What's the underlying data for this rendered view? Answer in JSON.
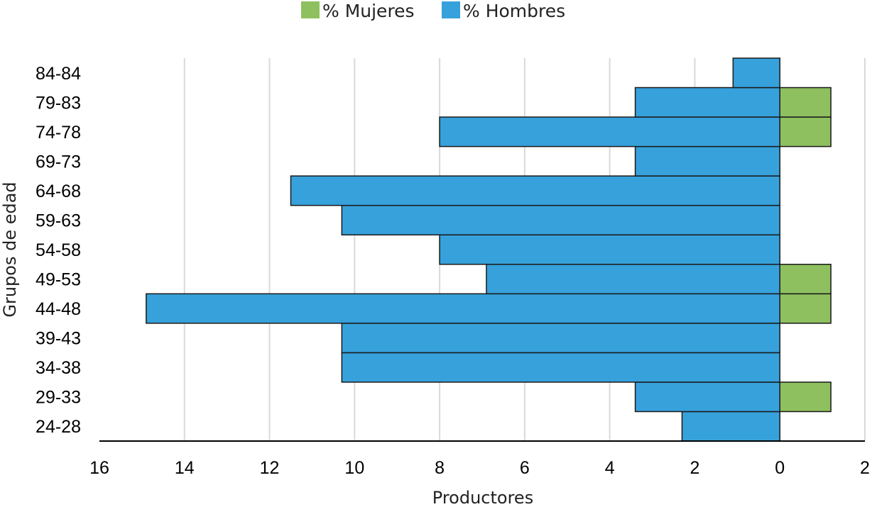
{
  "chart_data": {
    "type": "bar",
    "orientation": "horizontal",
    "layout": "population-pyramid",
    "xlabel": "Productores",
    "ylabel": "Grupos de edad",
    "xlim": [
      -16,
      2
    ],
    "x_ticks": [
      -16,
      -14,
      -12,
      -10,
      -8,
      -6,
      -4,
      -2,
      0,
      2
    ],
    "x_tick_labels": [
      "16",
      "14",
      "12",
      "10",
      "8",
      "6",
      "4",
      "2",
      "0",
      "2"
    ],
    "grid": true,
    "legend_position": "top-center",
    "categories": [
      "24-28",
      "29-33",
      "34-38",
      "39-43",
      "44-48",
      "49-53",
      "54-58",
      "59-63",
      "64-68",
      "69-73",
      "74-78",
      "79-83",
      "84-84"
    ],
    "series": [
      {
        "name": "% Mujeres",
        "color": "#8ec05f",
        "values": [
          0,
          1.2,
          0,
          0,
          1.2,
          1.2,
          0,
          0,
          0,
          0,
          1.2,
          1.2,
          0
        ]
      },
      {
        "name": "% Hombres",
        "color": "#37a1db",
        "values": [
          -2.3,
          -3.4,
          -10.3,
          -10.3,
          -14.9,
          -6.9,
          -8.0,
          -10.3,
          -11.5,
          -3.4,
          -8.0,
          -3.4,
          -1.1
        ]
      }
    ]
  }
}
